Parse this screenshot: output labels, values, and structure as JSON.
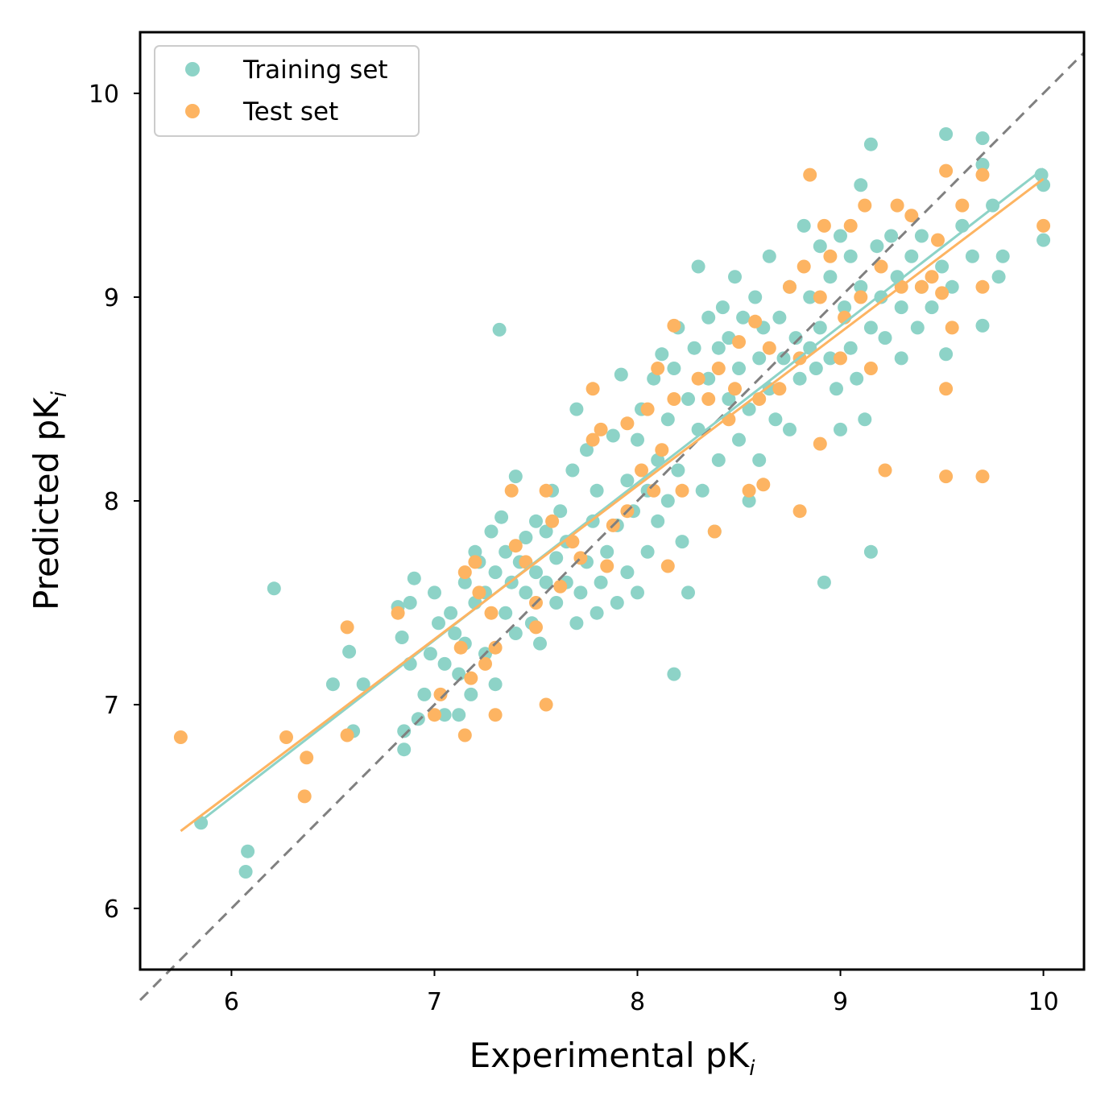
{
  "chart_data": {
    "type": "scatter",
    "xlabel": "Experimental pK",
    "xlabel_sub": "i",
    "ylabel": "Predicted pK",
    "ylabel_sub": "i",
    "xlim": [
      5.55,
      10.2
    ],
    "ylim": [
      5.7,
      10.3
    ],
    "xticks": [
      6,
      7,
      8,
      9,
      10
    ],
    "yticks": [
      6,
      7,
      8,
      9,
      10
    ],
    "xtick_labels": [
      "6",
      "7",
      "8",
      "9",
      "10"
    ],
    "ytick_labels": [
      "6",
      "7",
      "8",
      "9",
      "10"
    ],
    "legend_position": "top-left",
    "colors": {
      "training": "#8dd3c7",
      "test": "#fdb462",
      "diagonal": "#808080"
    },
    "identity_line": {
      "x": [
        5.55,
        10.2
      ],
      "y": [
        5.55,
        10.2
      ]
    },
    "series": [
      {
        "name": "Training set",
        "color": "#8dd3c7",
        "fit_line": {
          "x": [
            5.85,
            10.0
          ],
          "y": [
            6.43,
            9.63
          ]
        },
        "points": [
          [
            5.85,
            6.42
          ],
          [
            6.08,
            6.28
          ],
          [
            6.07,
            6.18
          ],
          [
            6.21,
            7.57
          ],
          [
            6.5,
            7.1
          ],
          [
            6.58,
            7.26
          ],
          [
            6.6,
            6.87
          ],
          [
            6.65,
            7.1
          ],
          [
            6.82,
            7.48
          ],
          [
            6.84,
            7.33
          ],
          [
            6.85,
            6.87
          ],
          [
            6.85,
            6.78
          ],
          [
            6.88,
            7.2
          ],
          [
            6.88,
            7.5
          ],
          [
            6.9,
            7.62
          ],
          [
            6.92,
            6.93
          ],
          [
            6.95,
            7.05
          ],
          [
            6.98,
            7.25
          ],
          [
            7.0,
            7.55
          ],
          [
            7.02,
            7.4
          ],
          [
            7.05,
            6.95
          ],
          [
            7.05,
            7.2
          ],
          [
            7.08,
            7.45
          ],
          [
            7.1,
            7.35
          ],
          [
            7.12,
            7.15
          ],
          [
            7.12,
            6.95
          ],
          [
            7.15,
            7.6
          ],
          [
            7.15,
            7.3
          ],
          [
            7.18,
            7.05
          ],
          [
            7.2,
            7.5
          ],
          [
            7.2,
            7.75
          ],
          [
            7.22,
            7.7
          ],
          [
            7.25,
            7.25
          ],
          [
            7.25,
            7.55
          ],
          [
            7.28,
            7.85
          ],
          [
            7.3,
            7.65
          ],
          [
            7.3,
            7.1
          ],
          [
            7.32,
            8.84
          ],
          [
            7.33,
            7.92
          ],
          [
            7.35,
            7.75
          ],
          [
            7.35,
            7.45
          ],
          [
            7.38,
            7.6
          ],
          [
            7.4,
            8.12
          ],
          [
            7.4,
            7.35
          ],
          [
            7.42,
            7.7
          ],
          [
            7.45,
            7.82
          ],
          [
            7.45,
            7.55
          ],
          [
            7.48,
            7.4
          ],
          [
            7.5,
            7.9
          ],
          [
            7.5,
            7.65
          ],
          [
            7.52,
            7.3
          ],
          [
            7.55,
            7.6
          ],
          [
            7.55,
            7.85
          ],
          [
            7.58,
            8.05
          ],
          [
            7.6,
            7.5
          ],
          [
            7.6,
            7.72
          ],
          [
            7.62,
            7.95
          ],
          [
            7.65,
            7.6
          ],
          [
            7.65,
            7.8
          ],
          [
            7.68,
            8.15
          ],
          [
            7.7,
            8.45
          ],
          [
            7.7,
            7.4
          ],
          [
            7.72,
            7.55
          ],
          [
            7.75,
            7.7
          ],
          [
            7.75,
            8.25
          ],
          [
            7.78,
            7.9
          ],
          [
            7.8,
            7.45
          ],
          [
            7.8,
            8.05
          ],
          [
            7.82,
            7.6
          ],
          [
            7.85,
            7.75
          ],
          [
            7.88,
            8.32
          ],
          [
            7.9,
            7.88
          ],
          [
            7.9,
            7.5
          ],
          [
            7.92,
            8.62
          ],
          [
            7.95,
            8.1
          ],
          [
            7.95,
            7.65
          ],
          [
            7.98,
            7.95
          ],
          [
            8.0,
            8.3
          ],
          [
            8.0,
            7.55
          ],
          [
            8.02,
            8.45
          ],
          [
            8.05,
            8.05
          ],
          [
            8.05,
            7.75
          ],
          [
            8.08,
            8.6
          ],
          [
            8.1,
            8.2
          ],
          [
            8.1,
            7.9
          ],
          [
            8.12,
            8.72
          ],
          [
            8.15,
            8.4
          ],
          [
            8.15,
            8.0
          ],
          [
            8.18,
            8.65
          ],
          [
            8.18,
            7.15
          ],
          [
            8.2,
            8.85
          ],
          [
            8.2,
            8.15
          ],
          [
            8.22,
            7.8
          ],
          [
            8.25,
            8.5
          ],
          [
            8.25,
            7.55
          ],
          [
            8.28,
            8.75
          ],
          [
            8.3,
            9.15
          ],
          [
            8.3,
            8.35
          ],
          [
            8.32,
            8.05
          ],
          [
            8.35,
            8.9
          ],
          [
            8.35,
            8.6
          ],
          [
            8.38,
            7.85
          ],
          [
            8.4,
            8.75
          ],
          [
            8.4,
            8.2
          ],
          [
            8.42,
            8.95
          ],
          [
            8.45,
            8.5
          ],
          [
            8.45,
            8.8
          ],
          [
            8.48,
            9.1
          ],
          [
            8.5,
            8.3
          ],
          [
            8.5,
            8.65
          ],
          [
            8.52,
            8.9
          ],
          [
            8.55,
            8.0
          ],
          [
            8.55,
            8.45
          ],
          [
            8.58,
            9.0
          ],
          [
            8.6,
            8.7
          ],
          [
            8.6,
            8.2
          ],
          [
            8.62,
            8.85
          ],
          [
            8.65,
            9.2
          ],
          [
            8.65,
            8.55
          ],
          [
            8.68,
            8.4
          ],
          [
            8.7,
            8.9
          ],
          [
            8.72,
            8.7
          ],
          [
            8.75,
            9.05
          ],
          [
            8.75,
            8.35
          ],
          [
            8.78,
            8.8
          ],
          [
            8.8,
            8.6
          ],
          [
            8.82,
            9.35
          ],
          [
            8.85,
            8.75
          ],
          [
            8.85,
            9.0
          ],
          [
            8.88,
            8.65
          ],
          [
            8.9,
            9.25
          ],
          [
            8.9,
            8.85
          ],
          [
            8.92,
            7.6
          ],
          [
            8.95,
            8.7
          ],
          [
            8.95,
            9.1
          ],
          [
            8.98,
            8.55
          ],
          [
            9.0,
            9.3
          ],
          [
            9.0,
            8.35
          ],
          [
            9.02,
            8.95
          ],
          [
            9.05,
            8.75
          ],
          [
            9.05,
            9.2
          ],
          [
            9.08,
            8.6
          ],
          [
            9.1,
            9.55
          ],
          [
            9.1,
            9.05
          ],
          [
            9.12,
            8.4
          ],
          [
            9.15,
            9.75
          ],
          [
            9.15,
            8.85
          ],
          [
            9.15,
            7.75
          ],
          [
            9.18,
            9.25
          ],
          [
            9.2,
            9.0
          ],
          [
            9.22,
            8.8
          ],
          [
            9.25,
            9.3
          ],
          [
            9.28,
            9.1
          ],
          [
            9.3,
            8.7
          ],
          [
            9.3,
            8.95
          ],
          [
            9.35,
            9.2
          ],
          [
            9.38,
            8.85
          ],
          [
            9.4,
            9.05
          ],
          [
            9.4,
            9.3
          ],
          [
            9.45,
            8.95
          ],
          [
            9.5,
            9.15
          ],
          [
            9.52,
            9.8
          ],
          [
            9.52,
            8.72
          ],
          [
            9.55,
            9.05
          ],
          [
            9.6,
            9.35
          ],
          [
            9.65,
            9.2
          ],
          [
            9.7,
            9.65
          ],
          [
            9.7,
            9.78
          ],
          [
            9.7,
            8.86
          ],
          [
            9.75,
            9.45
          ],
          [
            9.78,
            9.1
          ],
          [
            9.8,
            9.2
          ],
          [
            9.99,
            9.6
          ],
          [
            10.0,
            9.55
          ],
          [
            10.0,
            9.28
          ]
        ]
      },
      {
        "name": "Test set",
        "color": "#fdb462",
        "fit_line": {
          "x": [
            5.75,
            10.0
          ],
          "y": [
            6.38,
            9.58
          ]
        },
        "points": [
          [
            5.75,
            6.84
          ],
          [
            6.27,
            6.84
          ],
          [
            6.37,
            6.74
          ],
          [
            6.36,
            6.55
          ],
          [
            6.57,
            7.38
          ],
          [
            6.57,
            6.85
          ],
          [
            6.82,
            7.45
          ],
          [
            7.03,
            7.05
          ],
          [
            7.0,
            6.95
          ],
          [
            7.15,
            7.65
          ],
          [
            7.15,
            6.85
          ],
          [
            7.13,
            7.28
          ],
          [
            7.18,
            7.13
          ],
          [
            7.2,
            7.7
          ],
          [
            7.22,
            7.55
          ],
          [
            7.25,
            7.2
          ],
          [
            7.28,
            7.45
          ],
          [
            7.3,
            7.28
          ],
          [
            7.3,
            6.95
          ],
          [
            7.38,
            8.05
          ],
          [
            7.4,
            7.78
          ],
          [
            7.45,
            7.7
          ],
          [
            7.5,
            7.38
          ],
          [
            7.5,
            7.5
          ],
          [
            7.55,
            8.05
          ],
          [
            7.55,
            7.0
          ],
          [
            7.58,
            7.9
          ],
          [
            7.62,
            7.58
          ],
          [
            7.68,
            7.8
          ],
          [
            7.72,
            7.72
          ],
          [
            7.78,
            8.55
          ],
          [
            7.78,
            8.3
          ],
          [
            7.82,
            8.35
          ],
          [
            7.85,
            7.68
          ],
          [
            7.88,
            7.88
          ],
          [
            7.95,
            8.38
          ],
          [
            7.95,
            7.95
          ],
          [
            8.02,
            8.15
          ],
          [
            8.05,
            8.45
          ],
          [
            8.08,
            8.05
          ],
          [
            8.1,
            8.65
          ],
          [
            8.12,
            8.25
          ],
          [
            8.15,
            7.68
          ],
          [
            8.18,
            8.5
          ],
          [
            8.18,
            8.86
          ],
          [
            8.22,
            8.05
          ],
          [
            8.3,
            8.6
          ],
          [
            8.35,
            8.5
          ],
          [
            8.38,
            7.85
          ],
          [
            8.4,
            8.65
          ],
          [
            8.45,
            8.4
          ],
          [
            8.48,
            8.55
          ],
          [
            8.5,
            8.78
          ],
          [
            8.55,
            8.05
          ],
          [
            8.58,
            8.88
          ],
          [
            8.6,
            8.5
          ],
          [
            8.62,
            8.08
          ],
          [
            8.65,
            8.75
          ],
          [
            8.7,
            8.55
          ],
          [
            8.75,
            9.05
          ],
          [
            8.8,
            8.7
          ],
          [
            8.8,
            7.95
          ],
          [
            8.82,
            9.15
          ],
          [
            8.85,
            9.6
          ],
          [
            8.9,
            9.0
          ],
          [
            8.9,
            8.28
          ],
          [
            8.92,
            9.35
          ],
          [
            8.95,
            9.2
          ],
          [
            9.0,
            8.7
          ],
          [
            9.02,
            8.9
          ],
          [
            9.05,
            9.35
          ],
          [
            9.1,
            9.0
          ],
          [
            9.12,
            9.45
          ],
          [
            9.15,
            8.65
          ],
          [
            9.2,
            9.15
          ],
          [
            9.22,
            8.15
          ],
          [
            9.28,
            9.45
          ],
          [
            9.3,
            9.05
          ],
          [
            9.35,
            9.4
          ],
          [
            9.4,
            9.05
          ],
          [
            9.48,
            9.28
          ],
          [
            9.52,
            9.62
          ],
          [
            9.52,
            8.55
          ],
          [
            9.52,
            8.12
          ],
          [
            9.55,
            8.85
          ],
          [
            9.6,
            9.45
          ],
          [
            9.7,
            9.6
          ],
          [
            9.7,
            9.05
          ],
          [
            9.7,
            8.12
          ],
          [
            10.0,
            9.35
          ],
          [
            9.5,
            9.02
          ],
          [
            9.45,
            9.1
          ]
        ]
      }
    ]
  }
}
